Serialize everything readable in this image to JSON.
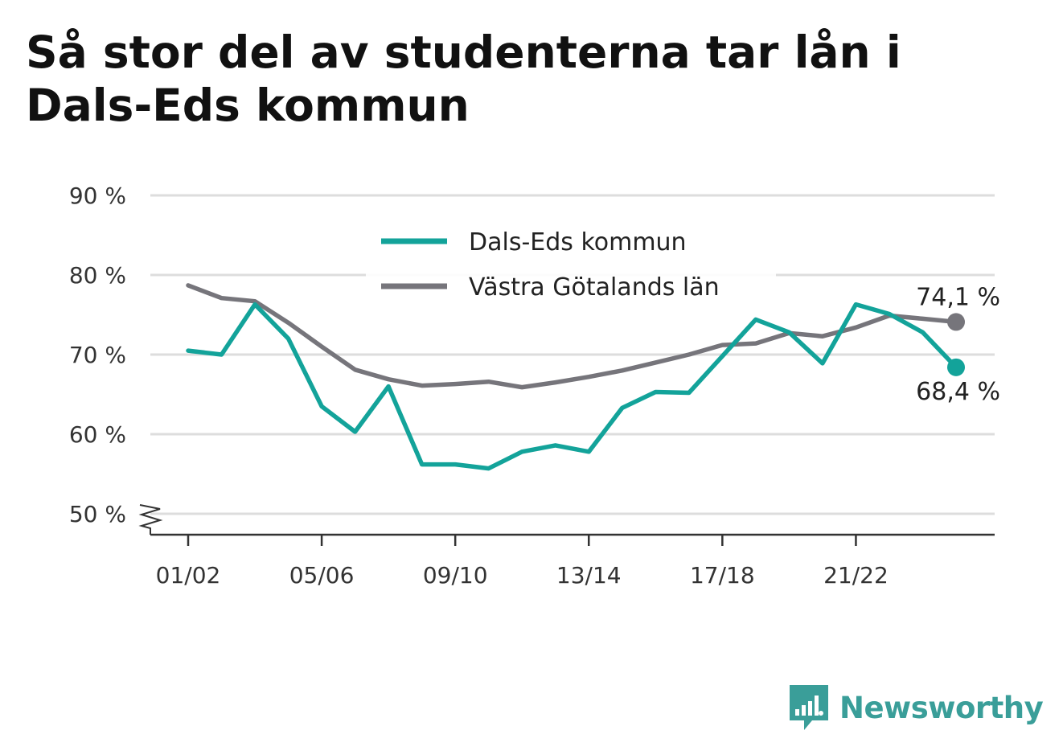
{
  "title": "Så stor del av studenterna tar lån i Dals-Eds kommun",
  "brand": {
    "name": "Newsworthy",
    "color": "#3a9e99",
    "icon": "newsworthy-logo-icon"
  },
  "colors": {
    "series_1": "#13a39a",
    "series_2": "#76757b",
    "grid": "#dddddd",
    "axis": "#333333"
  },
  "chart_data": {
    "type": "line",
    "title": "Så stor del av studenterna tar lån i Dals-Eds kommun",
    "xlabel": "",
    "ylabel": "",
    "ylim": [
      50,
      90
    ],
    "y_ticks": [
      "90 %",
      "80 %",
      "70 %",
      "60 %",
      "50 %"
    ],
    "y_tick_values": [
      90,
      80,
      70,
      60,
      50
    ],
    "x_tick_labels": [
      "01/02",
      "05/06",
      "09/10",
      "13/14",
      "17/18",
      "21/22"
    ],
    "x_tick_indices": [
      0,
      4,
      8,
      12,
      16,
      20
    ],
    "y_axis_break": true,
    "grid": true,
    "legend_position": "top-center",
    "series": [
      {
        "name": "Dals-Eds kommun",
        "color": "#13a39a",
        "values": [
          70.5,
          70.0,
          76.3,
          72.0,
          63.5,
          60.3,
          66.0,
          56.2,
          56.2,
          55.7,
          57.8,
          58.6,
          57.8,
          63.3,
          65.3,
          65.2,
          69.8,
          74.4,
          72.8,
          68.9,
          76.3,
          75.1,
          72.8,
          68.4
        ],
        "end_label": "68,4 %"
      },
      {
        "name": "Västra Götalands län",
        "color": "#76757b",
        "values": [
          78.7,
          77.1,
          76.7,
          74.0,
          71.0,
          68.1,
          66.9,
          66.1,
          66.3,
          66.6,
          65.9,
          66.5,
          67.2,
          68.0,
          69.0,
          70.0,
          71.2,
          71.4,
          72.7,
          72.3,
          73.4,
          74.9,
          74.5,
          74.1
        ],
        "end_label": "74,1 %"
      }
    ]
  }
}
